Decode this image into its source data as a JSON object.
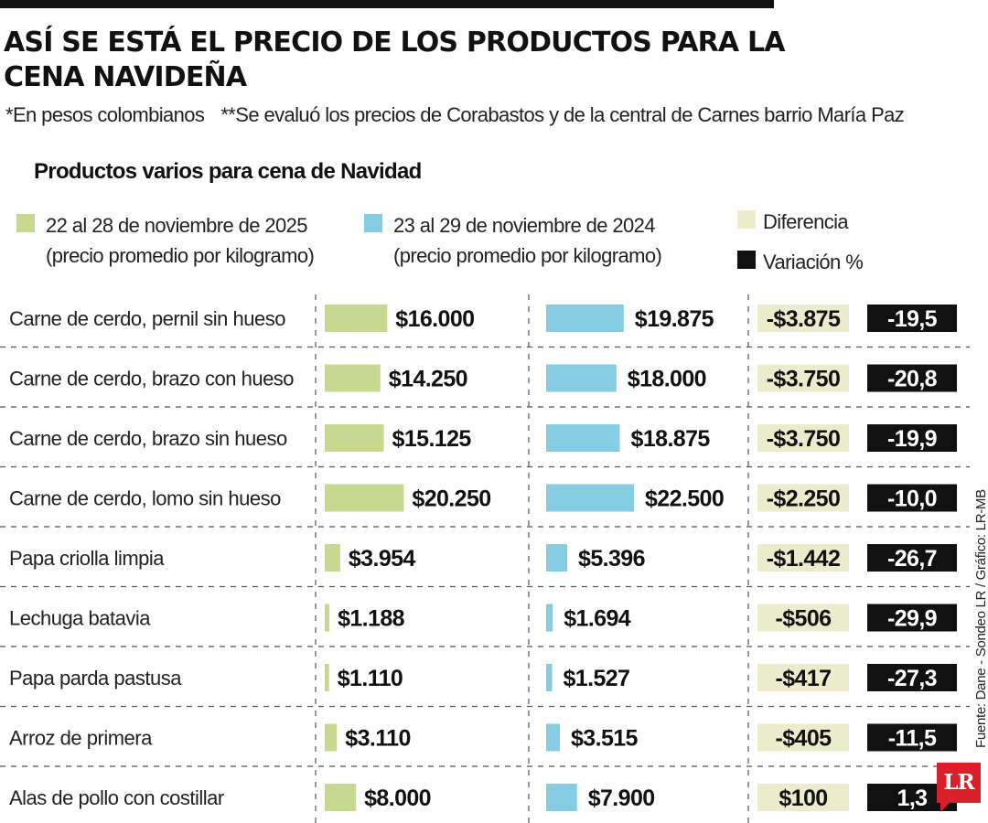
{
  "header": {
    "title": "ASÍ SE ESTÁ EL PRECIO DE LOS PRODUCTOS PARA LA CENA NAVIDEÑA",
    "note_currency": "*En pesos colombianos",
    "note_source": "**Se evaluó los precios de Corabastos y de la central de Carnes barrio María Paz",
    "section_title": "Productos varios para cena de Navidad"
  },
  "legend": {
    "series_2025_line1": "22 al 28 de noviembre de 2025",
    "series_2025_line2": "(precio promedio por kilogramo)",
    "series_2024_line1": "23 al 29 de noviembre de 2024",
    "series_2024_line2": "(precio promedio por kilogramo)",
    "difference": "Diferencia",
    "variation": "Variación %"
  },
  "colors": {
    "series_2025": "#c6d98f",
    "series_2024": "#86cde3",
    "difference": "#ebeccb",
    "variation": "#111111",
    "logo": "#d9202a"
  },
  "source": "Fuente: Dane - Sondeo LR / Gráfico: LR-MB",
  "logo": "LR",
  "chart_data": {
    "type": "bar",
    "title": "Productos varios para cena de Navidad",
    "categories": [
      "Carne de cerdo, pernil sin hueso",
      "Carne de cerdo, brazo con hueso",
      "Carne de cerdo, brazo sin hueso",
      "Carne de cerdo, lomo sin hueso",
      "Papa criolla limpia",
      "Lechuga batavia",
      "Papa parda pastusa",
      "Arroz de primera",
      "Alas de pollo con costillar"
    ],
    "series": [
      {
        "name": "22 al 28 de noviembre de 2025",
        "values": [
          16000,
          14250,
          15125,
          20250,
          3954,
          1188,
          1110,
          3110,
          8000
        ],
        "labels": [
          "$16.000",
          "$14.250",
          "$15.125",
          "$20.250",
          "$3.954",
          "$1.188",
          "$1.110",
          "$3.110",
          "$8.000"
        ]
      },
      {
        "name": "23 al 29 de noviembre de 2024",
        "values": [
          19875,
          18000,
          18875,
          22500,
          5396,
          1694,
          1527,
          3515,
          7900
        ],
        "labels": [
          "$19.875",
          "$18.000",
          "$18.875",
          "$22.500",
          "$5.396",
          "$1.694",
          "$1.527",
          "$3.515",
          "$7.900"
        ]
      }
    ],
    "difference": {
      "values": [
        -3875,
        -3750,
        -3750,
        -2250,
        -1442,
        -506,
        -417,
        -405,
        100
      ],
      "labels": [
        "-$3.875",
        "-$3.750",
        "-$3.750",
        "-$2.250",
        "-$1.442",
        "-$506",
        "-$417",
        "-$405",
        "$100"
      ]
    },
    "variation_pct": {
      "values": [
        -19.5,
        -20.8,
        -19.9,
        -10.0,
        -26.7,
        -29.9,
        -27.3,
        -11.5,
        1.3
      ],
      "labels": [
        "-19,5",
        "-20,8",
        "-19,9",
        "-10,0",
        "-26,7",
        "-29,9",
        "-27,3",
        "-11,5",
        "1,3"
      ]
    }
  }
}
